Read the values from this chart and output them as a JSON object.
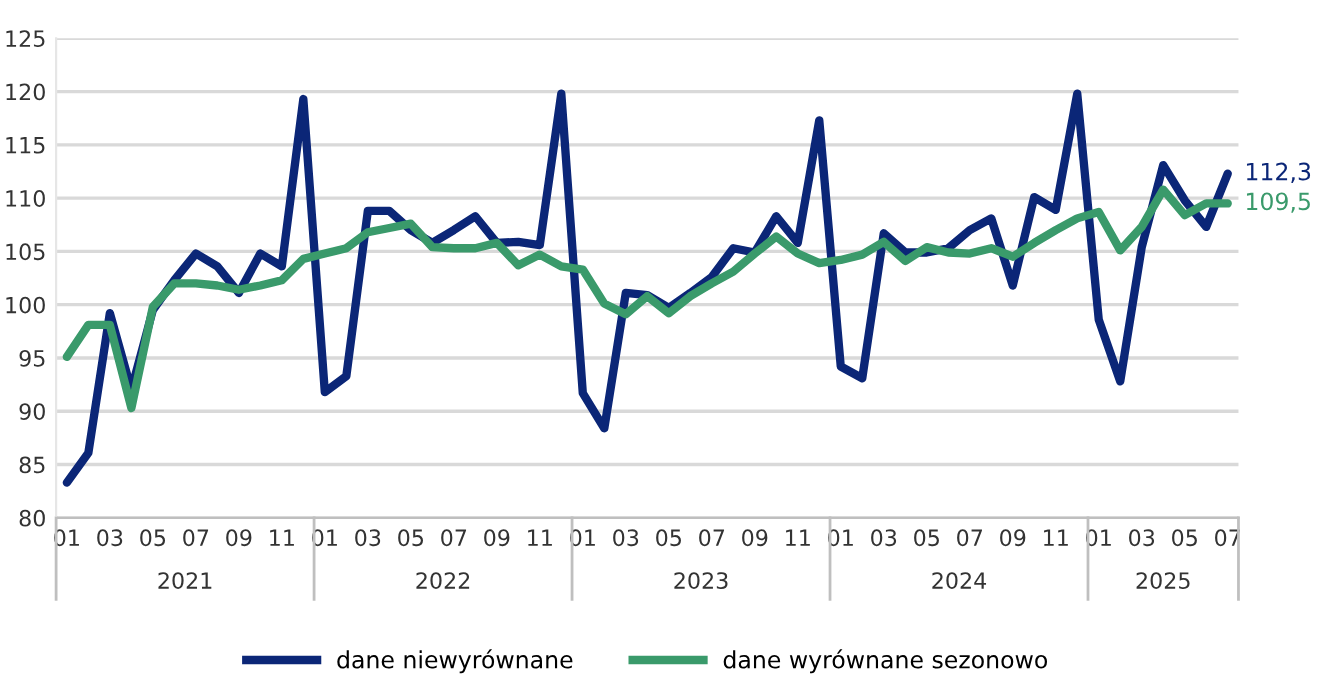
{
  "chart_data": {
    "type": "line",
    "categories": [
      "01",
      null,
      "03",
      null,
      "05",
      null,
      "07",
      null,
      "09",
      null,
      "11",
      null,
      "01",
      null,
      "03",
      null,
      "05",
      null,
      "07",
      null,
      "09",
      null,
      "11",
      null,
      "01",
      null,
      "03",
      null,
      "05",
      null,
      "07",
      null,
      "09",
      null,
      "11",
      null,
      "01",
      null,
      "03",
      null,
      "05",
      null,
      "07",
      null,
      "09",
      null,
      "11",
      null,
      "01",
      null,
      "03",
      null,
      "05",
      null,
      "07"
    ],
    "series": [
      {
        "name": "dane niewyrównane",
        "color": "#0b2677",
        "values": [
          83.3,
          86.1,
          99.2,
          92.0,
          99.5,
          102.3,
          104.8,
          103.6,
          101.1,
          104.8,
          103.6,
          119.3,
          91.8,
          93.3,
          108.8,
          108.8,
          107.0,
          105.8,
          107.0,
          108.3,
          105.8,
          105.9,
          105.6,
          119.8,
          91.7,
          88.4,
          101.1,
          100.9,
          99.7,
          101.1,
          102.6,
          105.3,
          104.9,
          108.3,
          105.8,
          117.3,
          94.2,
          93.1,
          106.7,
          104.9,
          104.9,
          105.3,
          107.0,
          108.1,
          101.8,
          110.1,
          108.9,
          119.8,
          98.6,
          92.8,
          105.4,
          113.1,
          109.8,
          107.3,
          112.3
        ],
        "value_labels": [
          null,
          null,
          null,
          null,
          null,
          null,
          null,
          null,
          null,
          null,
          null,
          null,
          null,
          null,
          null,
          null,
          null,
          null,
          null,
          null,
          null,
          null,
          null,
          null,
          null,
          null,
          null,
          null,
          null,
          null,
          null,
          null,
          null,
          null,
          null,
          null,
          null,
          null,
          null,
          null,
          null,
          null,
          null,
          null,
          null,
          null,
          null,
          null,
          null,
          null,
          null,
          null,
          null,
          null,
          "112,3"
        ]
      },
      {
        "name": "dane wyrównane sezonowo",
        "color": "#3a9a6b",
        "values": [
          95.1,
          98.1,
          98.1,
          90.3,
          99.8,
          102.0,
          102.0,
          101.8,
          101.4,
          101.8,
          102.3,
          104.3,
          104.8,
          105.3,
          106.8,
          107.2,
          107.6,
          105.4,
          105.3,
          105.3,
          105.8,
          103.7,
          104.7,
          103.6,
          103.3,
          100.1,
          99.1,
          100.8,
          99.2,
          100.8,
          102.0,
          103.1,
          104.8,
          106.4,
          104.8,
          103.9,
          104.2,
          104.7,
          105.9,
          104.1,
          105.4,
          104.9,
          104.8,
          105.3,
          104.5,
          105.8,
          107.0,
          108.1,
          108.7,
          105.1,
          107.3,
          110.8,
          108.4,
          109.5,
          109.5
        ],
        "value_labels": [
          null,
          null,
          null,
          null,
          null,
          null,
          null,
          null,
          null,
          null,
          null,
          null,
          null,
          null,
          null,
          null,
          null,
          null,
          null,
          null,
          null,
          null,
          null,
          null,
          null,
          null,
          null,
          null,
          null,
          null,
          null,
          null,
          null,
          null,
          null,
          null,
          null,
          null,
          null,
          null,
          null,
          null,
          null,
          null,
          null,
          null,
          null,
          null,
          null,
          null,
          null,
          null,
          null,
          null,
          "109,5"
        ]
      }
    ],
    "annotations": [
      "2021",
      "2022",
      "2023",
      "2024",
      "2025"
    ],
    "ylim": [
      80,
      125
    ],
    "yticks": [
      80,
      85,
      90,
      95,
      100,
      105,
      110,
      115,
      120,
      125
    ],
    "grid": "y",
    "legend": "bottom",
    "marker": "none",
    "line_style": "solid"
  }
}
